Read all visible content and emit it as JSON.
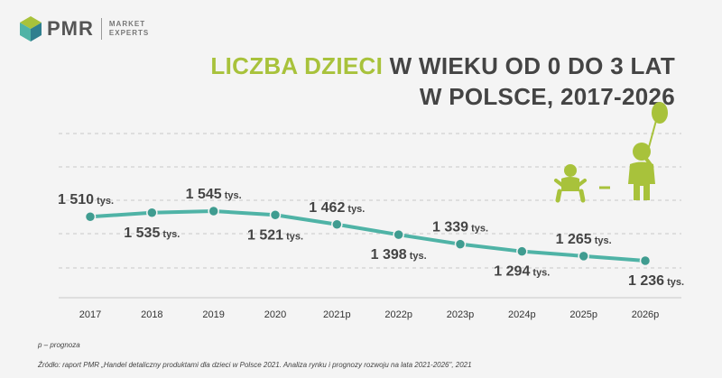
{
  "logo": {
    "name": "PMR",
    "sub1": "MARKET",
    "sub2": "EXPERTS"
  },
  "title": {
    "highlight": "LICZBA DZIECI",
    "rest1": "W WIEKU OD 0 DO 3 LAT",
    "line2": "W POLSCE, 2017-2026"
  },
  "colors": {
    "accent": "#a8c23b",
    "line": "#4fb3a6",
    "marker": "#3f9c90",
    "text": "#444444"
  },
  "chart_data": {
    "type": "line",
    "title": "LICZBA DZIECI W WIEKU OD 0 DO 3 LAT W POLSCE, 2017-2026",
    "categories": [
      "2017",
      "2018",
      "2019",
      "2020",
      "2021p",
      "2022p",
      "2023p",
      "2024p",
      "2025p",
      "2026p"
    ],
    "values": [
      1510,
      1535,
      1545,
      1521,
      1462,
      1398,
      1339,
      1294,
      1265,
      1236
    ],
    "unit": "tys.",
    "data_labels": [
      "1 510",
      "1 535",
      "1 545",
      "1 521",
      "1 462",
      "1 398",
      "1 339",
      "1 294",
      "1 265",
      "1 236"
    ],
    "label_above": [
      true,
      false,
      true,
      false,
      true,
      false,
      true,
      false,
      true,
      false
    ],
    "ylim": [
      1000,
      1700
    ],
    "grid": true,
    "xlabel": "",
    "ylabel": ""
  },
  "footnotes": {
    "legend": "p – prognoza",
    "source": "Źródło: raport PMR „Handel detaliczny produktami dla dzieci w Polsce 2021. Analiza rynku i prognozy rozwoju na lata 2021-2026\", 2021"
  }
}
